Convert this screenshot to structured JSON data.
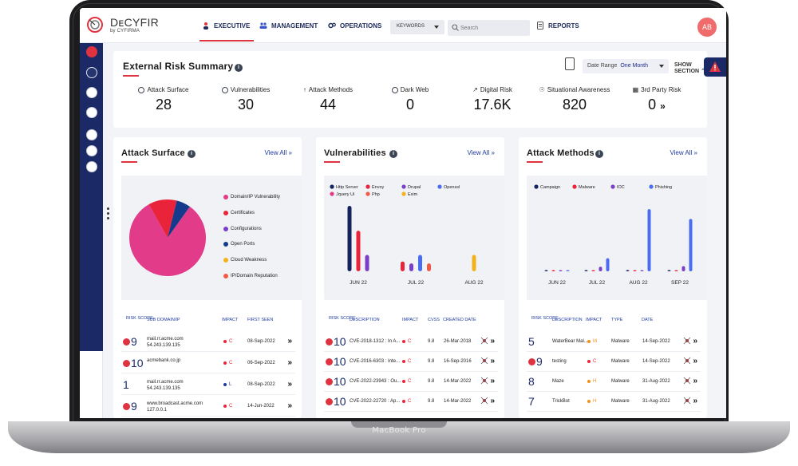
{
  "device": {
    "label": "MacBook Pro"
  },
  "header": {
    "brand": "DᴇCYFIR",
    "brand_sub": "by CYFIRMA",
    "nav": {
      "executive": "EXECUTIVE",
      "management": "MANAGEMENT",
      "operations": "OPERATIONS",
      "reports": "REPORTS"
    },
    "keywords_label": "KEYWORDS",
    "search_placeholder": "Search",
    "avatar_initials": "AB"
  },
  "summary": {
    "title": "External Risk Summary",
    "date_range_label": "Date Range",
    "date_range_value": "One Month",
    "show_section": "SHOW SECTION",
    "metrics": [
      {
        "label": "Attack Surface",
        "value": "28"
      },
      {
        "label": "Vulnerabilities",
        "value": "30"
      },
      {
        "label": "Attack Methods",
        "value": "44"
      },
      {
        "label": "Dark Web",
        "value": "0"
      },
      {
        "label": "Digital Risk",
        "value": "17.6K"
      },
      {
        "label": "Situational Awareness",
        "value": "820"
      },
      {
        "label": "3rd Party Risk",
        "value": "0"
      }
    ]
  },
  "attack_surface": {
    "title": "Attack Surface",
    "view_all": "View All",
    "legend": [
      "Domain/IP Vulnerability",
      "Certificates",
      "Configurations",
      "Open Ports",
      "Cloud Weakness",
      "IP/Domain Reputation"
    ],
    "headers": {
      "risk": "RISK SCORE",
      "sub": "SUB DOMAIN/IP",
      "impact": "IMPACT",
      "first_seen": "FIRST SEEN"
    },
    "rows": [
      {
        "score": "9",
        "flag": true,
        "sub1": "mail.rr.acme.com",
        "sub2": "54.243.139.135",
        "impact": "C",
        "date": "08-Sep-2022"
      },
      {
        "score": "10",
        "flag": true,
        "sub1": "acmebank.co.jp",
        "sub2": "",
        "impact": "C",
        "date": "06-Sep-2022"
      },
      {
        "score": "1",
        "flag": false,
        "sub1": "mail.rr.acme.com",
        "sub2": "54.243.139.135",
        "impact": "L",
        "date": "08-Sep-2022"
      },
      {
        "score": "9",
        "flag": true,
        "sub1": "www.broadcast.acme.com",
        "sub2": "127.0.0.1",
        "impact": "C",
        "date": "14-Jun-2022"
      }
    ]
  },
  "vulnerabilities": {
    "title": "Vulnerabilities",
    "view_all": "View All",
    "legend": [
      "Http Server",
      "Envoy",
      "Drupal",
      "Openssl",
      "Jquery Ui",
      "Php",
      "Exim"
    ],
    "headers": {
      "risk": "RISK SCORE",
      "desc": "DESCRIPTION",
      "impact": "IMPACT",
      "cvss": "CVSS",
      "created": "CREATED DATE"
    },
    "rows": [
      {
        "score": "10",
        "desc": "CVE-2018-1312 : In A...",
        "impact": "C",
        "cvss": "9.8",
        "date": "26-Mar-2018"
      },
      {
        "score": "10",
        "desc": "CVE-2016-6303 : Inte...",
        "impact": "C",
        "cvss": "9.8",
        "date": "16-Sep-2016"
      },
      {
        "score": "10",
        "desc": "CVE-2022-23943 : Ou...",
        "impact": "C",
        "cvss": "9.8",
        "date": "14-Mar-2022"
      },
      {
        "score": "10",
        "desc": "CVE-2022-22720 : Ap...",
        "impact": "C",
        "cvss": "9.8",
        "date": "14-Mar-2022"
      }
    ]
  },
  "attack_methods": {
    "title": "Attack Methods",
    "view_all": "View All",
    "legend": [
      "Campaign",
      "Malware",
      "IOC",
      "Phishing"
    ],
    "headers": {
      "risk": "RISK SCORE",
      "desc": "DESCRIPTION",
      "impact": "IMPACT",
      "type": "TYPE",
      "date": "DATE"
    },
    "rows": [
      {
        "score": "5",
        "flag": false,
        "desc": "WaterBear Mal...",
        "impact": "M",
        "type": "Malware",
        "date": "14-Sep-2022"
      },
      {
        "score": "9",
        "flag": true,
        "desc": "testing",
        "impact": "C",
        "type": "Malware",
        "date": "14-Sep-2022"
      },
      {
        "score": "8",
        "flag": false,
        "desc": "Maze",
        "impact": "H",
        "type": "Malware",
        "date": "31-Aug-2022"
      },
      {
        "score": "7",
        "flag": false,
        "desc": "TrickBot",
        "impact": "H",
        "type": "Malware",
        "date": "31-Aug-2022"
      }
    ]
  },
  "chart_data": [
    {
      "type": "pie",
      "title": "Attack Surface",
      "categories": [
        "Domain/IP Vulnerability",
        "Certificates",
        "Configurations",
        "Open Ports",
        "Cloud Weakness",
        "IP/Domain Reputation"
      ],
      "values": [
        82,
        12,
        0,
        6,
        0,
        0
      ],
      "colors": [
        "#e23b8a",
        "#e8233a",
        "#7a3fc8",
        "#143a8c",
        "#f2b21b",
        "#f05a45"
      ]
    },
    {
      "type": "bar",
      "title": "Vulnerabilities",
      "categories": [
        "JUN 22",
        "JUL 22",
        "AUG 22"
      ],
      "series": [
        {
          "name": "Http Server",
          "color": "#16225e",
          "values": [
            100,
            0,
            0
          ]
        },
        {
          "name": "Envoy",
          "color": "#e8233a",
          "values": [
            62,
            15,
            0
          ]
        },
        {
          "name": "Drupal",
          "color": "#7a3fc8",
          "values": [
            25,
            12,
            0
          ]
        },
        {
          "name": "Openssl",
          "color": "#4a6cf0",
          "values": [
            0,
            25,
            0
          ]
        },
        {
          "name": "Jquery Ui",
          "color": "#e23b8a",
          "values": [
            0,
            0,
            0
          ]
        },
        {
          "name": "Php",
          "color": "#f05a45",
          "values": [
            0,
            12,
            0
          ]
        },
        {
          "name": "Exim",
          "color": "#f2b21b",
          "values": [
            0,
            0,
            25
          ]
        }
      ]
    },
    {
      "type": "bar",
      "title": "Attack Methods",
      "categories": [
        "JUN 22",
        "JUL 22",
        "AUG 22",
        "SEP 22"
      ],
      "series": [
        {
          "name": "Campaign",
          "color": "#16225e",
          "values": [
            2,
            2,
            2,
            2
          ]
        },
        {
          "name": "Malware",
          "color": "#e8233a",
          "values": [
            0,
            0,
            0,
            0
          ]
        },
        {
          "name": "IOC",
          "color": "#7a3fc8",
          "values": [
            0,
            7,
            0,
            8
          ]
        },
        {
          "name": "Phishing",
          "color": "#4a6cf0",
          "values": [
            0,
            20,
            95,
            80
          ]
        }
      ]
    }
  ],
  "colors": {
    "navy": "#1b2a66",
    "accent_red": "#e03340",
    "link_blue": "#1d3aa0",
    "critical": "#e8233a",
    "high": "#f0921b",
    "low": "#1d3aa0"
  }
}
